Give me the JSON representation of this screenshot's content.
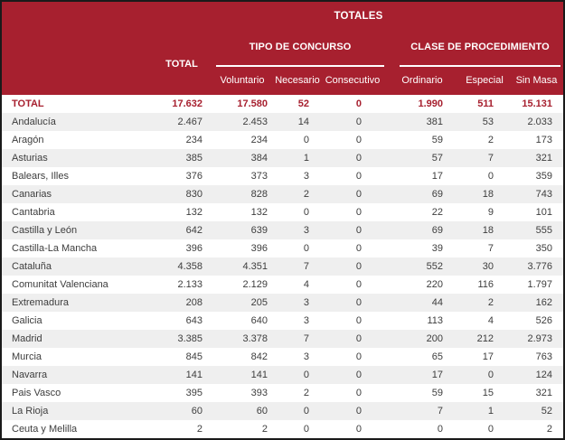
{
  "header": {
    "title": "TOTALES",
    "total_label": "TOTAL",
    "groups": [
      {
        "label": "TIPO DE CONCURSO",
        "columns": [
          "Voluntario",
          "Necesario",
          "Consecutivo"
        ]
      },
      {
        "label": "CLASE DE PROCEDIMIENTO",
        "columns": [
          "Ordinario",
          "Especial",
          "Sin Masa"
        ]
      }
    ]
  },
  "columns": [
    "TOTAL",
    "Voluntario",
    "Necesario",
    "Consecutivo",
    "Ordinario",
    "Especial",
    "Sin Masa"
  ],
  "rows": [
    {
      "name": "TOTAL",
      "is_total": true,
      "values": [
        "17.632",
        "17.580",
        "52",
        "0",
        "1.990",
        "511",
        "15.131"
      ]
    },
    {
      "name": "Andalucía",
      "is_total": false,
      "values": [
        "2.467",
        "2.453",
        "14",
        "0",
        "381",
        "53",
        "2.033"
      ]
    },
    {
      "name": "Aragón",
      "is_total": false,
      "values": [
        "234",
        "234",
        "0",
        "0",
        "59",
        "2",
        "173"
      ]
    },
    {
      "name": "Asturias",
      "is_total": false,
      "values": [
        "385",
        "384",
        "1",
        "0",
        "57",
        "7",
        "321"
      ]
    },
    {
      "name": "Balears, Illes",
      "is_total": false,
      "values": [
        "376",
        "373",
        "3",
        "0",
        "17",
        "0",
        "359"
      ]
    },
    {
      "name": "Canarias",
      "is_total": false,
      "values": [
        "830",
        "828",
        "2",
        "0",
        "69",
        "18",
        "743"
      ]
    },
    {
      "name": "Cantabria",
      "is_total": false,
      "values": [
        "132",
        "132",
        "0",
        "0",
        "22",
        "9",
        "101"
      ]
    },
    {
      "name": "Castilla y León",
      "is_total": false,
      "values": [
        "642",
        "639",
        "3",
        "0",
        "69",
        "18",
        "555"
      ]
    },
    {
      "name": "Castilla-La Mancha",
      "is_total": false,
      "values": [
        "396",
        "396",
        "0",
        "0",
        "39",
        "7",
        "350"
      ]
    },
    {
      "name": "Cataluña",
      "is_total": false,
      "values": [
        "4.358",
        "4.351",
        "7",
        "0",
        "552",
        "30",
        "3.776"
      ]
    },
    {
      "name": "Comunitat Valenciana",
      "is_total": false,
      "values": [
        "2.133",
        "2.129",
        "4",
        "0",
        "220",
        "116",
        "1.797"
      ]
    },
    {
      "name": "Extremadura",
      "is_total": false,
      "values": [
        "208",
        "205",
        "3",
        "0",
        "44",
        "2",
        "162"
      ]
    },
    {
      "name": "Galicia",
      "is_total": false,
      "values": [
        "643",
        "640",
        "3",
        "0",
        "113",
        "4",
        "526"
      ]
    },
    {
      "name": "Madrid",
      "is_total": false,
      "values": [
        "3.385",
        "3.378",
        "7",
        "0",
        "200",
        "212",
        "2.973"
      ]
    },
    {
      "name": "Murcia",
      "is_total": false,
      "values": [
        "845",
        "842",
        "3",
        "0",
        "65",
        "17",
        "763"
      ]
    },
    {
      "name": "Navarra",
      "is_total": false,
      "values": [
        "141",
        "141",
        "0",
        "0",
        "17",
        "0",
        "124"
      ]
    },
    {
      "name": "Pais Vasco",
      "is_total": false,
      "values": [
        "395",
        "393",
        "2",
        "0",
        "59",
        "15",
        "321"
      ]
    },
    {
      "name": "La Rioja",
      "is_total": false,
      "values": [
        "60",
        "60",
        "0",
        "0",
        "7",
        "1",
        "52"
      ]
    },
    {
      "name": "Ceuta y Melilla",
      "is_total": false,
      "values": [
        "2",
        "2",
        "0",
        "0",
        "0",
        "0",
        "2"
      ]
    }
  ],
  "colors": {
    "header_bg": "#A7202F",
    "total_text": "#A7202F",
    "body_text": "#3D3D3D",
    "stripe": "#EFEFEF",
    "border": "#1A1A1A"
  }
}
